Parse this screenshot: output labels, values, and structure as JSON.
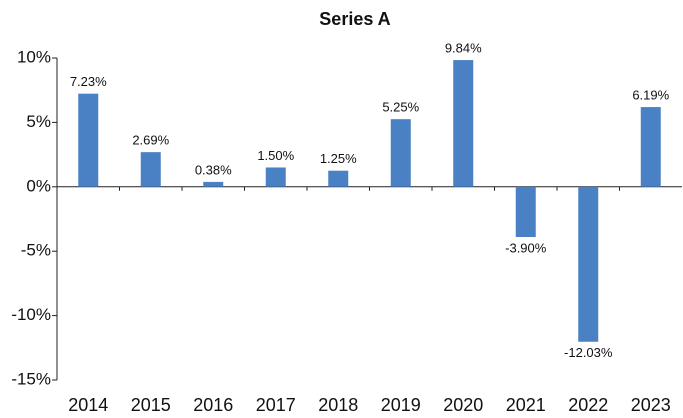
{
  "chart_data": {
    "type": "bar",
    "title": "Series A",
    "categories": [
      "2014",
      "2015",
      "2016",
      "2017",
      "2018",
      "2019",
      "2020",
      "2021",
      "2022",
      "2023"
    ],
    "values": [
      7.23,
      2.69,
      0.38,
      1.5,
      1.25,
      5.25,
      9.84,
      -3.9,
      -12.03,
      6.19
    ],
    "value_labels": [
      "7.23%",
      "2.69%",
      "0.38%",
      "1.50%",
      "1.25%",
      "5.25%",
      "9.84%",
      "-3.90%",
      "-12.03%",
      "6.19%"
    ],
    "color": "#4a81c4",
    "ylim": [
      -15,
      10
    ],
    "yticks": [
      {
        "value": -15,
        "label": "-15%"
      },
      {
        "value": -10,
        "label": "-10%"
      },
      {
        "value": -5,
        "label": "-5%"
      },
      {
        "value": 0,
        "label": "0%"
      },
      {
        "value": 5,
        "label": "5%"
      },
      {
        "value": 10,
        "label": "10%"
      }
    ],
    "grid": false
  }
}
